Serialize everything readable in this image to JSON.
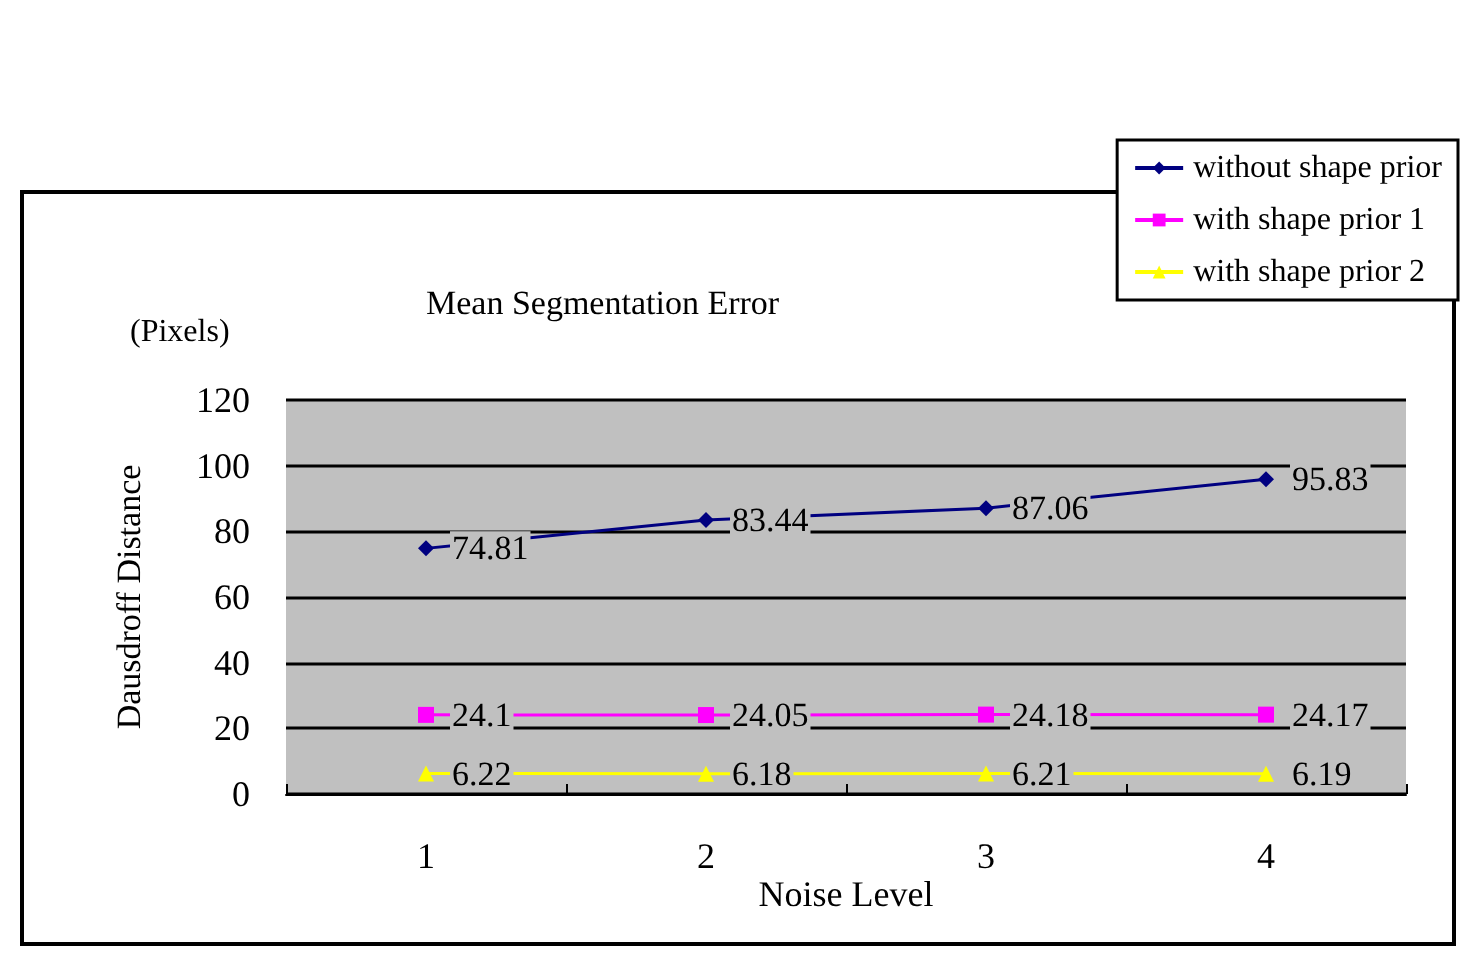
{
  "chart_data": {
    "type": "line",
    "title": "Mean Segmentation Error",
    "xlabel": "Noise Level",
    "ylabel": "Dausdroff Distance",
    "annotations": [
      "(Pixels)"
    ],
    "categories": [
      "1",
      "2",
      "3",
      "4"
    ],
    "series": [
      {
        "name": "without shape prior",
        "color": "#000080",
        "marker": "diamond",
        "values": [
          74.81,
          83.44,
          87.06,
          95.83
        ]
      },
      {
        "name": "with shape prior 1",
        "color": "#ff00ff",
        "marker": "square",
        "values": [
          24.1,
          24.05,
          24.18,
          24.17
        ]
      },
      {
        "name": "with shape prior 2",
        "color": "#ffff00",
        "marker": "triangle",
        "values": [
          6.22,
          6.18,
          6.21,
          6.19
        ]
      }
    ],
    "ylim": [
      0,
      120
    ],
    "yticks": [
      0,
      20,
      40,
      60,
      80,
      100,
      120
    ],
    "grid": "y",
    "legend": "top right",
    "data_labels": true
  }
}
